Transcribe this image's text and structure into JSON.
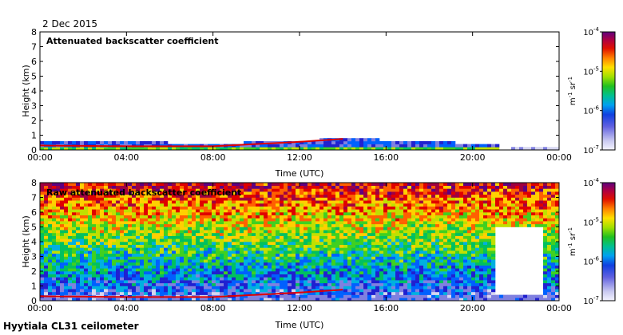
{
  "header": {
    "date": "2 Dec 2015"
  },
  "footer": {
    "site": "Hyytiala CL31 ceilometer"
  },
  "colors": {
    "scale": [
      "#ffffff",
      "#d6d6f0",
      "#8080e0",
      "#2020d0",
      "#0060ff",
      "#00b0e0",
      "#00c060",
      "#40d020",
      "#c0e000",
      "#ffd000",
      "#ff6000",
      "#e00000",
      "#a00040",
      "#600080"
    ]
  },
  "chart_data": [
    {
      "type": "heatmap",
      "title": "Attenuated backscatter coefficient",
      "xlabel": "Time (UTC)",
      "ylabel": "Height (km)",
      "x_ticks": [
        "00:00",
        "04:00",
        "08:00",
        "12:00",
        "16:00",
        "20:00",
        "00:00"
      ],
      "xlim_hours": [
        0,
        24
      ],
      "y_ticks": [
        0,
        1,
        2,
        3,
        4,
        5,
        6,
        7,
        8
      ],
      "ylim": [
        0,
        8
      ],
      "colorbar": {
        "ticks": [
          "10-7",
          "10-6",
          "10-5",
          "10-4"
        ],
        "unit": "m-1 sr-1",
        "scale": "log",
        "range": [
          1e-07,
          0.0001
        ]
      },
      "features": {
        "boundary_layer_top_km": [
          [
            0,
            0.6
          ],
          [
            4,
            0.55
          ],
          [
            8,
            0.45
          ],
          [
            12,
            0.6
          ],
          [
            14,
            0.8
          ],
          [
            21,
            0.4
          ],
          [
            24,
            0.3
          ]
        ],
        "signal_ends_hours": 21.2,
        "cloud_base_km": [
          [
            0,
            0.3
          ],
          [
            4,
            0.25
          ],
          [
            8,
            0.25
          ],
          [
            12,
            0.55
          ],
          [
            14,
            0.75
          ]
        ]
      }
    },
    {
      "type": "heatmap",
      "title": "Raw attenuated backscatter coefficient",
      "xlabel": "Time (UTC)",
      "ylabel": "Height (km)",
      "x_ticks": [
        "00:00",
        "04:00",
        "08:00",
        "12:00",
        "16:00",
        "20:00",
        "00:00"
      ],
      "xlim_hours": [
        0,
        24
      ],
      "y_ticks": [
        0,
        1,
        2,
        3,
        4,
        5,
        6,
        7,
        8
      ],
      "ylim": [
        0,
        8
      ],
      "colorbar": {
        "ticks": [
          "10-7",
          "10-6",
          "10-5",
          "10-4"
        ],
        "unit": "m-1 sr-1",
        "scale": "log",
        "range": [
          1e-07,
          0.0001
        ]
      },
      "features": {
        "noise_increases_with_height": true,
        "cloud_base_km": [
          [
            0,
            0.3
          ],
          [
            4,
            0.25
          ],
          [
            8,
            0.25
          ],
          [
            12,
            0.55
          ],
          [
            14,
            0.75
          ]
        ],
        "fog_gap_hours": [
          21.0,
          23.2
        ],
        "fog_gap_top_km": 5.0
      }
    }
  ]
}
